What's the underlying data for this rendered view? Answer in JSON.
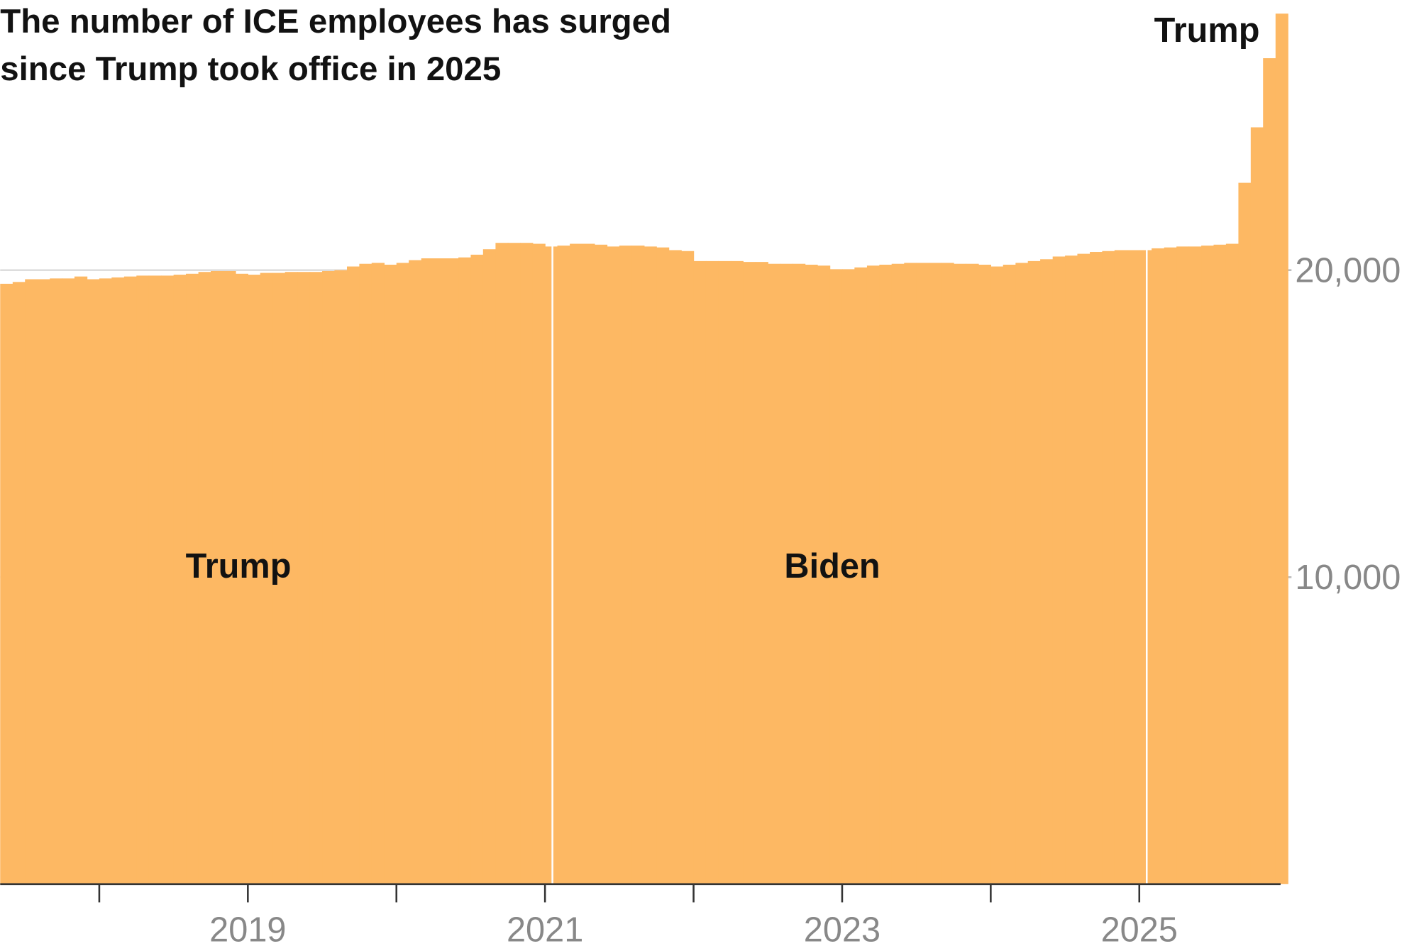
{
  "chart_data": {
    "type": "step-area",
    "title": "The number of ICE employees has surged since Trump took office in 2025",
    "color": "#fdb863",
    "x": [
      2017.333,
      2017.417,
      2017.5,
      2017.583,
      2017.667,
      2017.75,
      2017.833,
      2017.917,
      2018,
      2018.083,
      2018.167,
      2018.25,
      2018.333,
      2018.417,
      2018.5,
      2018.583,
      2018.667,
      2018.75,
      2018.833,
      2018.917,
      2019,
      2019.083,
      2019.167,
      2019.25,
      2019.333,
      2019.417,
      2019.5,
      2019.583,
      2019.667,
      2019.75,
      2019.833,
      2019.917,
      2020,
      2020.083,
      2020.167,
      2020.25,
      2020.333,
      2020.417,
      2020.5,
      2020.583,
      2020.667,
      2020.75,
      2020.833,
      2020.917,
      2021,
      2021.083,
      2021.167,
      2021.25,
      2021.333,
      2021.417,
      2021.5,
      2021.583,
      2021.667,
      2021.75,
      2021.833,
      2021.917,
      2022,
      2022.083,
      2022.167,
      2022.25,
      2022.333,
      2022.417,
      2022.5,
      2022.583,
      2022.667,
      2022.75,
      2022.833,
      2022.917,
      2023,
      2023.083,
      2023.167,
      2023.25,
      2023.333,
      2023.417,
      2023.5,
      2023.583,
      2023.667,
      2023.75,
      2023.833,
      2023.917,
      2024,
      2024.083,
      2024.167,
      2024.25,
      2024.333,
      2024.417,
      2024.5,
      2024.583,
      2024.667,
      2024.75,
      2024.833,
      2024.917,
      2025,
      2025.083,
      2025.167,
      2025.25,
      2025.333,
      2025.417,
      2025.5,
      2025.583,
      2025.667,
      2025.75,
      2025.833,
      2025.917
    ],
    "values": [
      19556,
      19615,
      19704,
      19704,
      19730,
      19730,
      19793,
      19704,
      19730,
      19763,
      19793,
      19822,
      19822,
      19822,
      19852,
      19882,
      19941,
      19970,
      19970,
      19882,
      19852,
      19911,
      19911,
      19941,
      19941,
      19941,
      19970,
      20000,
      20119,
      20207,
      20237,
      20178,
      20237,
      20326,
      20385,
      20385,
      20385,
      20415,
      20504,
      20681,
      20889,
      20889,
      20889,
      20859,
      20770,
      20800,
      20859,
      20859,
      20830,
      20770,
      20800,
      20800,
      20770,
      20740,
      20652,
      20622,
      20296,
      20296,
      20296,
      20296,
      20267,
      20267,
      20207,
      20207,
      20207,
      20178,
      20148,
      20030,
      20030,
      20089,
      20148,
      20178,
      20207,
      20237,
      20237,
      20237,
      20237,
      20207,
      20207,
      20178,
      20119,
      20178,
      20237,
      20296,
      20356,
      20444,
      20474,
      20533,
      20593,
      20622,
      20652,
      20652,
      20652,
      20711,
      20740,
      20770,
      20770,
      20800,
      20830,
      20859,
      22845,
      24652,
      26904,
      28356
    ],
    "xlim": [
      2017.333,
      2026.0
    ],
    "xticks": [
      2019,
      2021,
      2023,
      2025
    ],
    "minor_xticks": [
      2018,
      2020,
      2022,
      2024
    ],
    "ylim": [
      0,
      28800
    ],
    "yticks": [
      {
        "value": 10000,
        "label": "10,000"
      },
      {
        "value": 20000,
        "label": "20,000"
      }
    ],
    "grid": true,
    "periods": [
      {
        "label": "Trump"
      },
      {
        "label": "Biden",
        "start": 2021.05
      },
      {
        "label": "Trump",
        "start": 2025.05
      }
    ]
  }
}
